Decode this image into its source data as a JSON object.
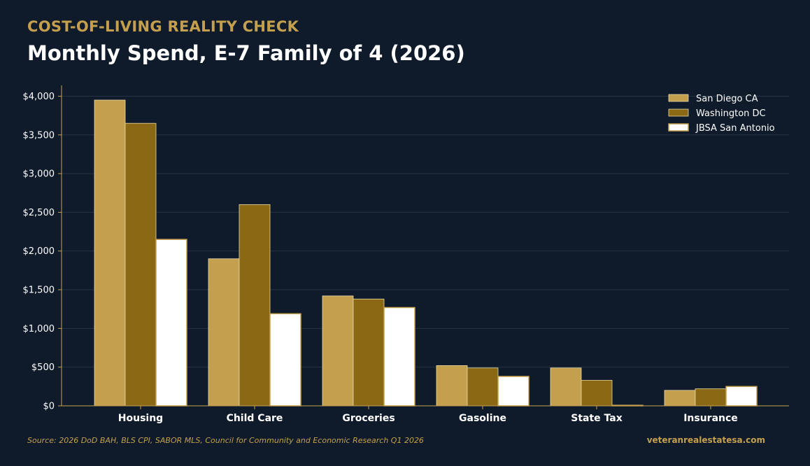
{
  "header": {
    "kicker": "COST-OF-LIVING REALITY CHECK",
    "title": "Monthly Spend, E-7 Family of 4 (2026)"
  },
  "footer": {
    "source": "Source: 2026 DoD BAH, BLS CPI, SABOR MLS, Council for Community and Economic Research Q1 2026",
    "site": "veteranrealestatesa.com"
  },
  "colors": {
    "background": "#0f1b2a",
    "accent": "#c4a04e",
    "grid": "#243345",
    "axis": "#c4a04e"
  },
  "chart_data": {
    "type": "bar",
    "categories": [
      "Housing",
      "Child Care",
      "Groceries",
      "Gasoline",
      "State Tax",
      "Insurance"
    ],
    "series": [
      {
        "name": "San Diego CA",
        "color": "#c4a04e",
        "values": [
          3950,
          1900,
          1420,
          520,
          490,
          200
        ]
      },
      {
        "name": "Washington DC",
        "color": "#8b6914",
        "values": [
          3650,
          2600,
          1380,
          490,
          330,
          220
        ]
      },
      {
        "name": "JBSA San Antonio",
        "color": "#ffffff",
        "values": [
          2150,
          1190,
          1270,
          380,
          0,
          250
        ]
      }
    ],
    "ylim": [
      0,
      4140
    ],
    "yticks": [
      0,
      500,
      1000,
      1500,
      2000,
      2500,
      3000,
      3500,
      4000
    ],
    "ytick_labels": [
      "$0",
      "$500",
      "$1,000",
      "$1,500",
      "$2,000",
      "$2,500",
      "$3,000",
      "$3,500",
      "$4,000"
    ],
    "grid": true,
    "legend_position": "top-right",
    "xlabel": "",
    "ylabel": ""
  }
}
